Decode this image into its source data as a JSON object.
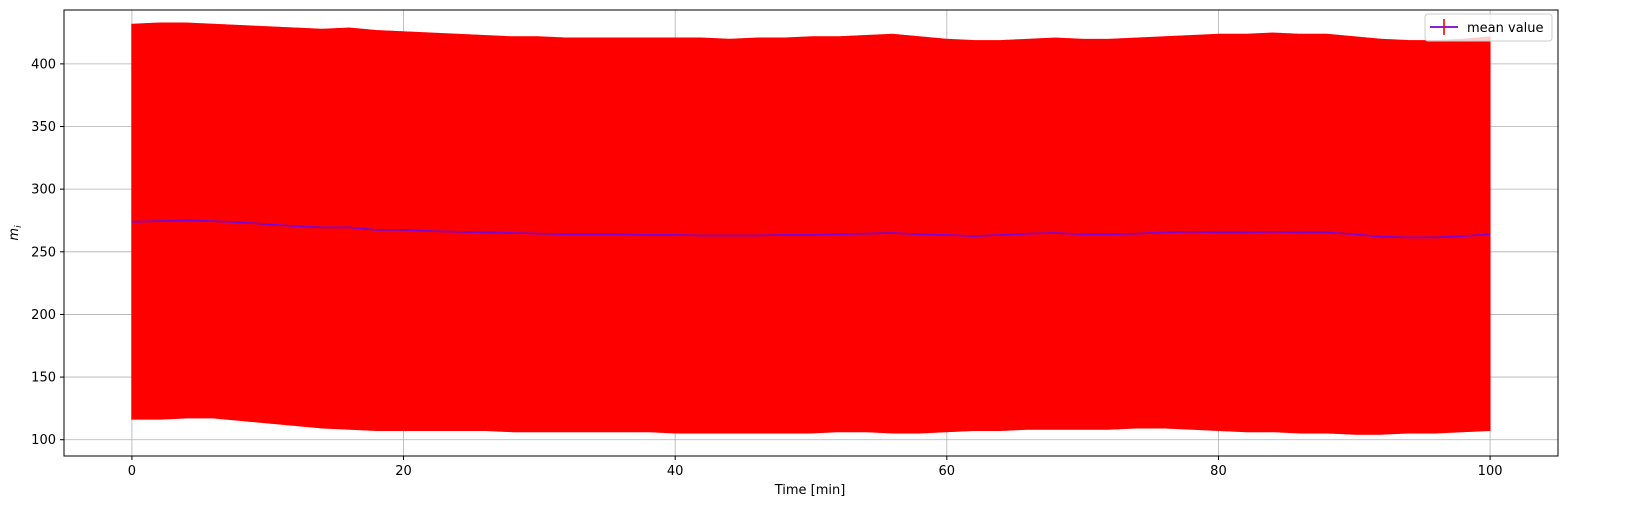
{
  "chart_data": {
    "type": "line",
    "title": "",
    "xlabel": "Time [min]",
    "ylabel_base": "m",
    "ylabel_sub": "i",
    "xlim": [
      -5,
      105
    ],
    "ylim": [
      87,
      443
    ],
    "xticks": [
      0,
      20,
      40,
      60,
      80,
      100
    ],
    "yticks": [
      100,
      150,
      200,
      250,
      300,
      350,
      400
    ],
    "grid": true,
    "legend_position": "top-right",
    "error_color": "#ff0000",
    "line_color": "#7b00d4",
    "x": [
      0,
      2,
      4,
      6,
      8,
      10,
      12,
      14,
      16,
      18,
      20,
      22,
      24,
      26,
      28,
      30,
      32,
      34,
      36,
      38,
      40,
      42,
      44,
      46,
      48,
      50,
      52,
      54,
      56,
      58,
      60,
      62,
      64,
      66,
      68,
      70,
      72,
      74,
      76,
      78,
      80,
      82,
      84,
      86,
      88,
      90,
      92,
      94,
      96,
      98,
      100
    ],
    "series": [
      {
        "name": "mean value",
        "values": [
          274,
          274.5,
          275,
          274.5,
          273.5,
          272,
          270.5,
          269.5,
          269.5,
          267.5,
          267.5,
          266.5,
          266,
          265.5,
          265,
          264.5,
          264,
          264,
          264,
          263.5,
          263.5,
          263,
          263,
          263,
          263.5,
          263.5,
          264,
          264.5,
          265,
          264,
          263.5,
          262.5,
          263.5,
          264.5,
          265,
          264,
          264,
          264.5,
          265.5,
          266,
          265.5,
          265.5,
          266,
          265.5,
          265.5,
          264,
          262,
          261.5,
          261.5,
          262.5,
          264
        ],
        "upper": [
          432,
          433,
          433,
          432,
          431,
          430,
          429,
          428,
          429,
          427,
          426,
          425,
          424,
          423,
          422,
          422,
          421,
          421,
          421,
          421,
          421,
          421,
          420,
          421,
          421,
          422,
          422,
          423,
          424,
          422,
          420,
          419,
          419,
          420,
          421,
          420,
          420,
          421,
          422,
          423,
          424,
          424,
          425,
          424,
          424,
          422,
          420,
          419,
          419,
          420,
          422
        ],
        "lower": [
          116,
          116,
          117,
          117,
          115,
          113,
          111,
          109,
          108,
          107,
          107,
          107,
          107,
          107,
          106,
          106,
          106,
          106,
          106,
          106,
          105,
          105,
          105,
          105,
          105,
          105,
          106,
          106,
          105,
          105,
          106,
          107,
          107,
          108,
          108,
          108,
          108,
          109,
          109,
          108,
          107,
          106,
          106,
          105,
          105,
          104,
          104,
          105,
          105,
          106,
          107
        ]
      }
    ]
  }
}
